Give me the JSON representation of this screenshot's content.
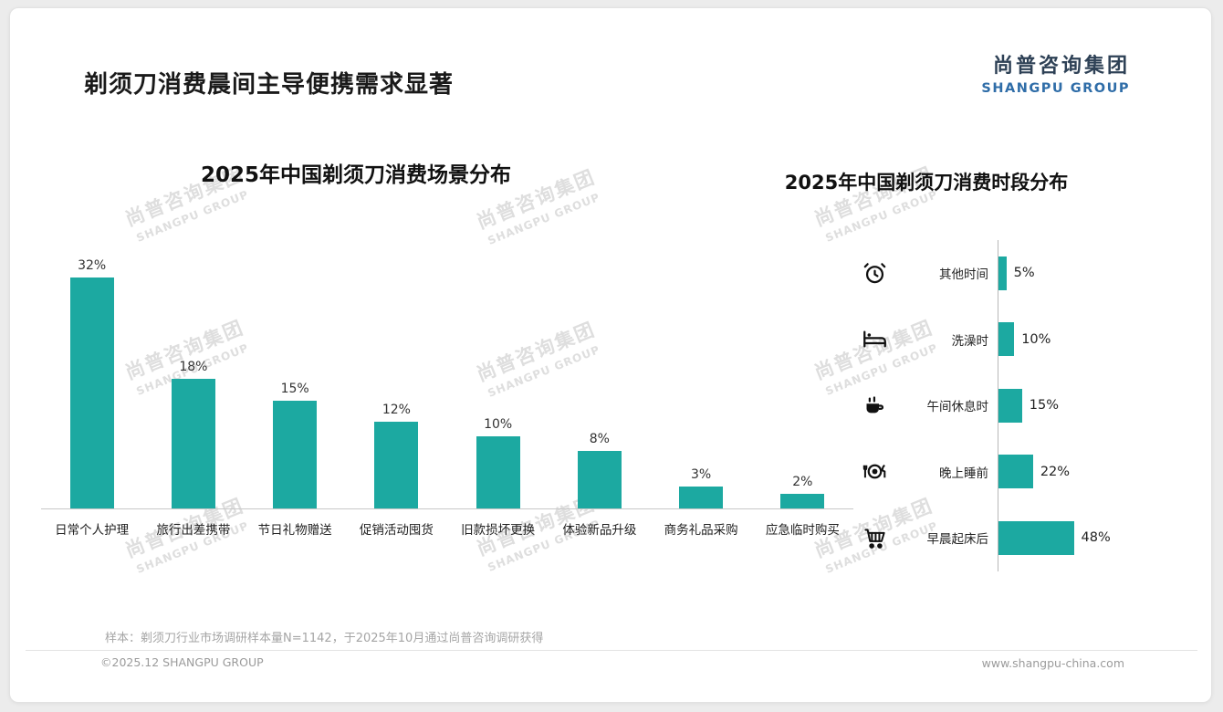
{
  "page": {
    "title": "剃须刀消费晨间主导便携需求显著",
    "logo": {
      "cn": "尚普咨询集团",
      "en": "SHANGPU GROUP"
    },
    "watermark": {
      "cn": "尚普咨询集团",
      "en": "SHANGPU GROUP"
    },
    "footnote": "样本：剃须刀行业市场调研样本量N=1142，于2025年10月通过尚普咨询调研获得",
    "copyright": "©2025.12 SHANGPU GROUP",
    "website": "www.shangpu-china.com"
  },
  "colors": {
    "accent": "#1CA9A1",
    "logo_cn": "#2E4156",
    "logo_en": "#2F6DA8",
    "watermark": "#D6D6D6"
  },
  "chart_data": [
    {
      "type": "bar",
      "orientation": "vertical",
      "title": "2025年中国剃须刀消费场景分布",
      "categories": [
        "日常个人护理",
        "旅行出差携带",
        "节日礼物赠送",
        "促销活动囤货",
        "旧款损坏更换",
        "体验新品升级",
        "商务礼品采购",
        "应急临时购买"
      ],
      "values": [
        32,
        18,
        15,
        12,
        10,
        8,
        3,
        2
      ],
      "value_suffix": "%",
      "ylim": [
        0,
        35
      ],
      "grid": false,
      "legend": "none",
      "bar_color": "#1CA9A1"
    },
    {
      "type": "bar",
      "orientation": "horizontal",
      "title": "2025年中国剃须刀消费时段分布",
      "categories": [
        "其他时间",
        "洗澡时",
        "午间休息时",
        "晚上睡前",
        "早晨起床后"
      ],
      "values": [
        5,
        10,
        15,
        22,
        48
      ],
      "icons": [
        "alarm-clock-icon",
        "bed-icon",
        "coffee-cup-icon",
        "dinner-plate-icon",
        "shopping-cart-icon"
      ],
      "value_suffix": "%",
      "xlim": [
        0,
        50
      ],
      "grid": false,
      "legend": "none",
      "bar_color": "#1CA9A1"
    }
  ]
}
